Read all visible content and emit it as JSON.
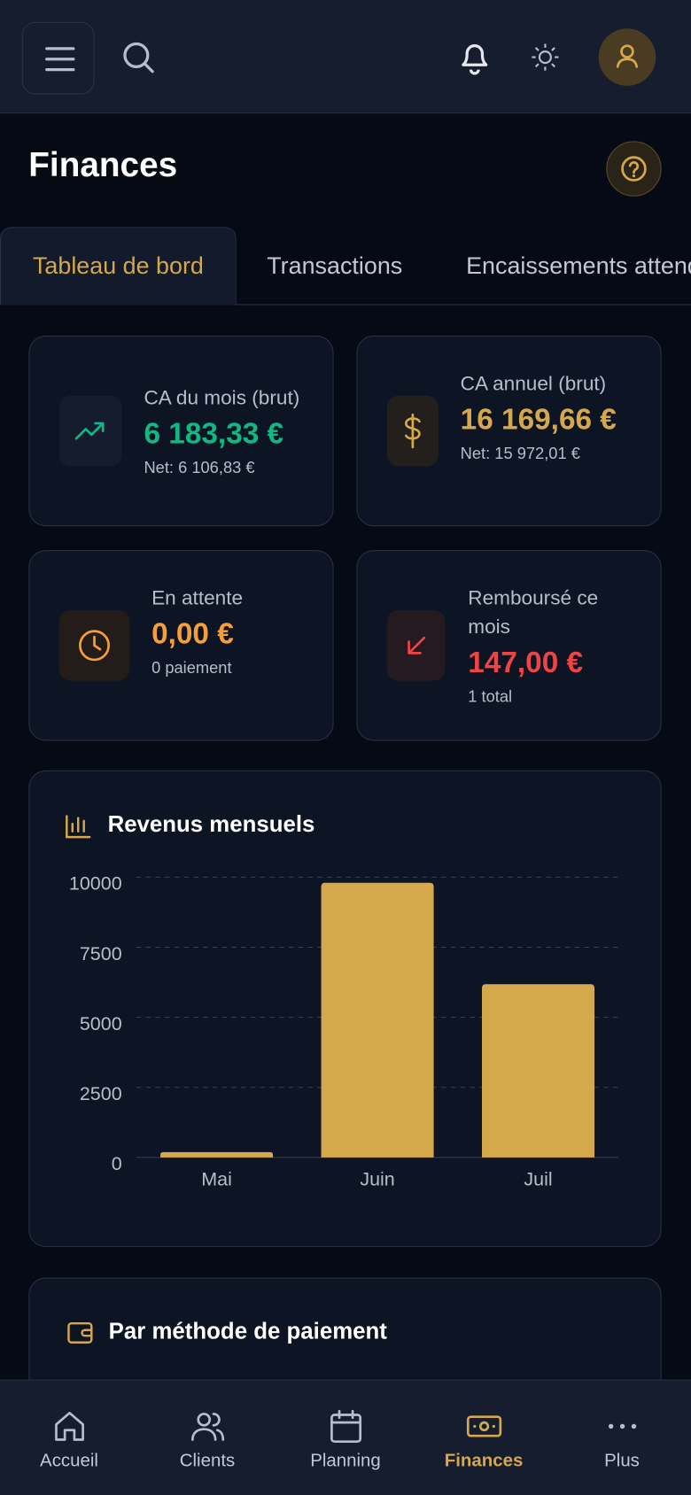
{
  "header": {
    "title": "Finances"
  },
  "tabs": [
    "Tableau de bord",
    "Transactions",
    "Encaissements attendus"
  ],
  "cards": [
    {
      "label": "CA du mois (brut)",
      "value": "6 183,33 €",
      "sub": "Net: 6 106,83 €"
    },
    {
      "label": "CA annuel (brut)",
      "value": "16 169,66 €",
      "sub": "Net: 15 972,01 €"
    },
    {
      "label": "En attente",
      "value": "0,00 €",
      "sub": "0 paiement"
    },
    {
      "label": "Remboursé ce mois",
      "value": "147,00 €",
      "sub": "1 total"
    }
  ],
  "chart_data": {
    "type": "bar",
    "title": "Revenus mensuels",
    "categories": [
      "Mai",
      "Juin",
      "Juil"
    ],
    "values": [
      190,
      9800,
      6180
    ],
    "color": "#d4a84b",
    "ylim": [
      0,
      10000
    ],
    "yticks": [
      0,
      2500,
      5000,
      7500,
      10000
    ],
    "grid": true
  },
  "section": {
    "title": "Par méthode de paiement"
  },
  "nav": [
    "Accueil",
    "Clients",
    "Planning",
    "Finances",
    "Plus"
  ]
}
